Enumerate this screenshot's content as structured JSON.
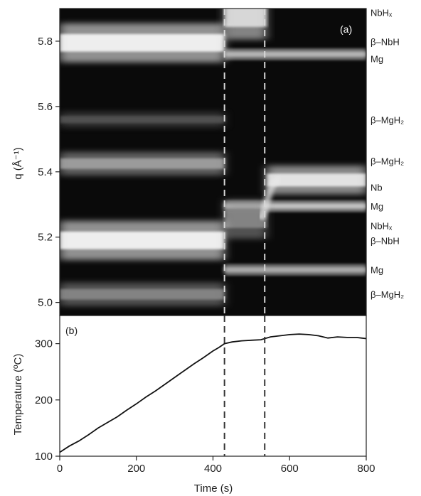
{
  "chart_data": [
    {
      "panel_label": "(a)",
      "type": "heatmap",
      "ylabel": "q (Å⁻¹)",
      "xlim": [
        0,
        800
      ],
      "ylim": [
        4.96,
        5.9
      ],
      "yticks": [
        5.0,
        5.2,
        5.4,
        5.6,
        5.8
      ],
      "colormap": "grayscale (black = low intensity, white = high intensity)",
      "bands": [
        {
          "label": "NbHₓ",
          "q": 5.875,
          "t_start": 430,
          "t_end": 540,
          "peak": 0.9,
          "width": 0.035,
          "slope": 0
        },
        {
          "label": "β–NbH",
          "q": 5.795,
          "t_start": 0,
          "t_end": 430,
          "peak": 1.0,
          "width": 0.03,
          "slope": 0
        },
        {
          "label": "Mg",
          "q": 5.76,
          "t_start": 430,
          "t_end": 800,
          "peak": 0.75,
          "width": 0.009,
          "slope": 0
        },
        {
          "label": "β–MgH₂",
          "q": 5.56,
          "t_start": 0,
          "t_end": 430,
          "peak": 0.33,
          "width": 0.012,
          "slope": 0
        },
        {
          "label": "β–MgH₂",
          "q": 5.425,
          "t_start": 0,
          "t_end": 430,
          "peak": 0.65,
          "width": 0.018,
          "slope": 0
        },
        {
          "label": "Nb",
          "q": 5.375,
          "t_start": 540,
          "t_end": 800,
          "peak": 0.95,
          "width": 0.022,
          "slope": 0
        },
        {
          "label": "Mg",
          "q": 5.295,
          "t_start": 430,
          "t_end": 800,
          "peak": 0.8,
          "width": 0.009,
          "slope": 0
        },
        {
          "label": "NbHₓ",
          "q": 5.255,
          "t_start": 430,
          "t_end": 540,
          "peak": 0.55,
          "width": 0.03,
          "slope": 0
        },
        {
          "label": "β–NbH",
          "q": 5.19,
          "t_start": 0,
          "t_end": 430,
          "peak": 1.0,
          "width": 0.03,
          "slope": 0
        },
        {
          "label": "Mg",
          "q": 5.1,
          "t_start": 430,
          "t_end": 800,
          "peak": 0.7,
          "width": 0.009,
          "slope": 0
        },
        {
          "label": "β–MgH₂",
          "q": 5.025,
          "t_start": 0,
          "t_end": 430,
          "peak": 0.55,
          "width": 0.018,
          "slope": 0
        }
      ],
      "transitions": [
        430,
        535
      ]
    },
    {
      "panel_label": "(b)",
      "type": "line",
      "xlabel": "Time (s)",
      "ylabel": "Temperature (ºC)",
      "xlim": [
        0,
        800
      ],
      "ylim": [
        100,
        350
      ],
      "xticks": [
        0,
        200,
        400,
        600,
        800
      ],
      "yticks": [
        100,
        200,
        300
      ],
      "dashed_vlines": [
        430,
        535
      ],
      "x": [
        0,
        25,
        50,
        75,
        100,
        125,
        150,
        175,
        200,
        225,
        250,
        275,
        300,
        325,
        350,
        375,
        400,
        415,
        430,
        450,
        475,
        500,
        525,
        550,
        575,
        600,
        625,
        650,
        675,
        700,
        725,
        750,
        775,
        800
      ],
      "y": [
        107,
        118,
        127,
        138,
        150,
        160,
        170,
        182,
        193,
        205,
        216,
        228,
        240,
        252,
        264,
        275,
        287,
        293,
        300,
        303,
        305,
        306,
        307,
        312,
        314,
        316,
        317,
        316,
        314,
        310,
        312,
        311,
        311,
        309
      ]
    }
  ]
}
